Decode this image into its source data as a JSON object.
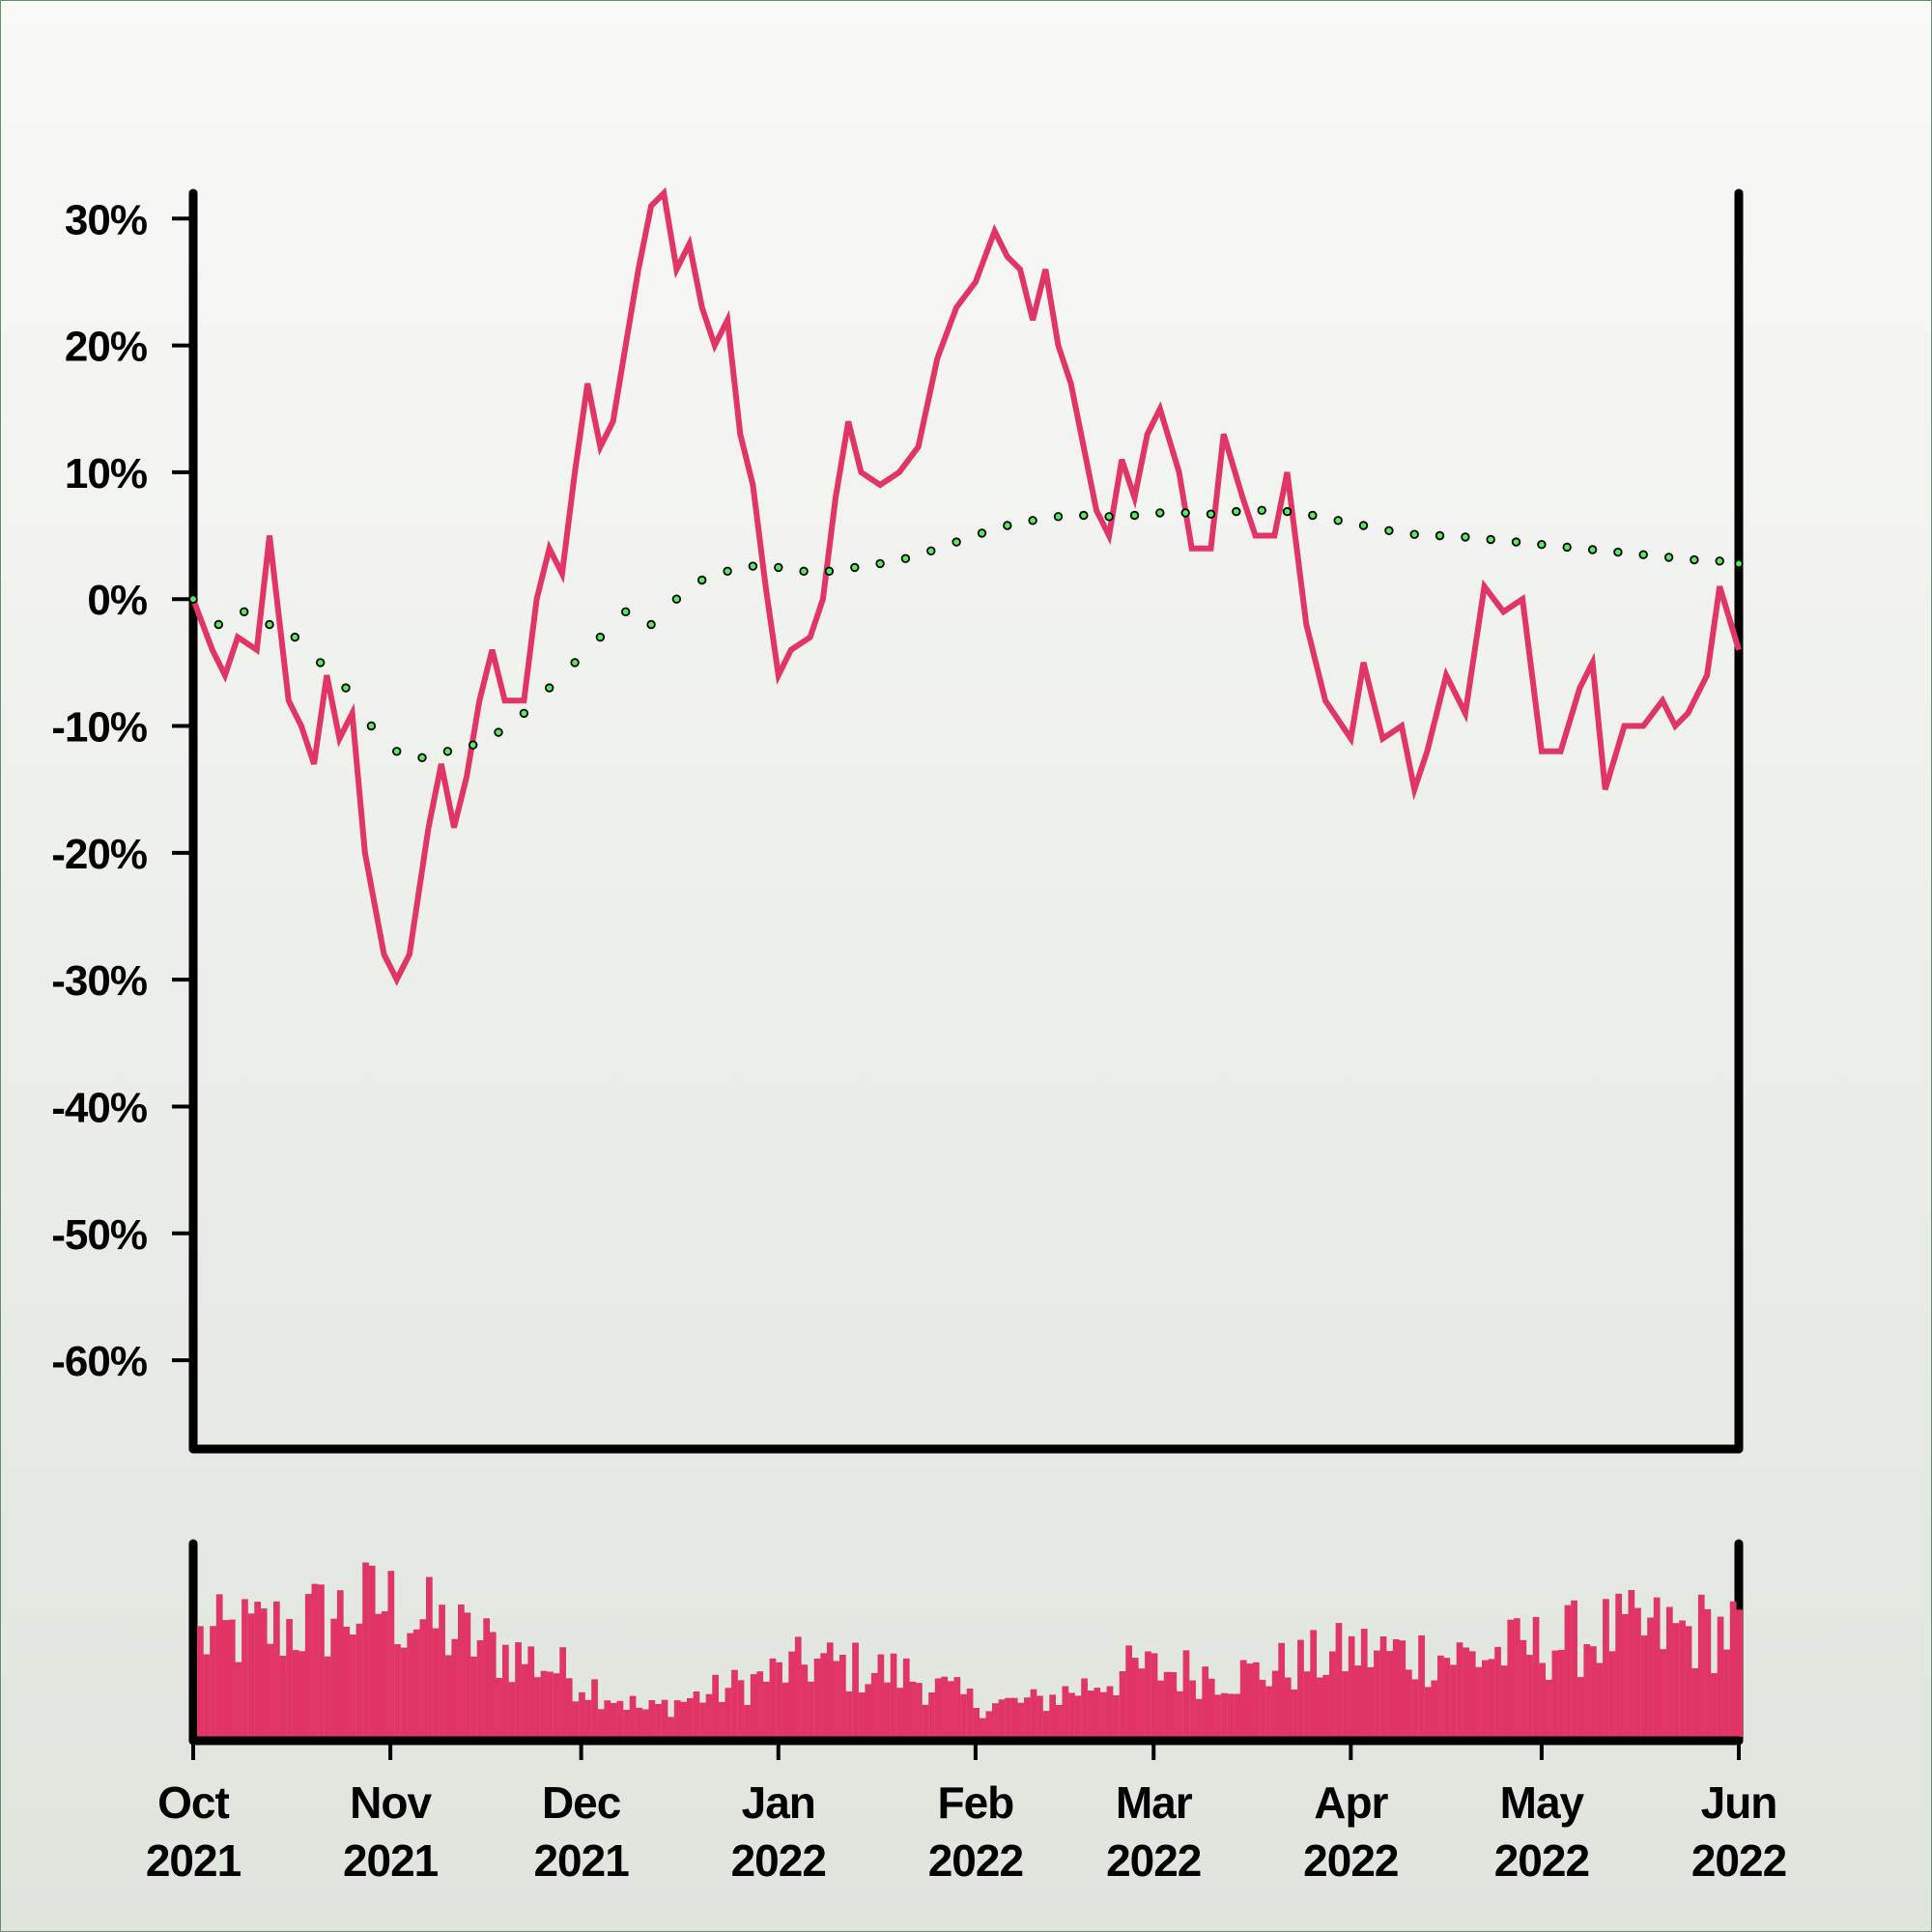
{
  "colors": {
    "price_line": "#e03565",
    "moving_average_fill": "#55ee55",
    "moving_average_stroke": "#000000",
    "volume_bars": "#e03565",
    "axis": "#000000"
  },
  "chart_data": [
    {
      "type": "line",
      "role": "price-chart",
      "title": "",
      "xlabel": "",
      "ylabel": "",
      "x_range": [
        "2021-10-01",
        "2022-06-01"
      ],
      "ylim": [
        -67,
        32
      ],
      "y_ticks": [
        {
          "value": 30,
          "label": "30%"
        },
        {
          "value": 20,
          "label": "20%"
        },
        {
          "value": 10,
          "label": "10%"
        },
        {
          "value": 0,
          "label": "0%"
        },
        {
          "value": -10,
          "label": "-10%"
        },
        {
          "value": -20,
          "label": "-20%"
        },
        {
          "value": -30,
          "label": "-30%"
        },
        {
          "value": -40,
          "label": "-40%"
        },
        {
          "value": -50,
          "label": "-50%"
        },
        {
          "value": -60,
          "label": "-60%"
        }
      ],
      "grid": false,
      "legend": "none",
      "series": [
        {
          "style": "solid-line",
          "points": [
            [
              "2021-10-01",
              0
            ],
            [
              "2021-10-04",
              -4
            ],
            [
              "2021-10-06",
              -6
            ],
            [
              "2021-10-08",
              -3
            ],
            [
              "2021-10-11",
              -4
            ],
            [
              "2021-10-13",
              5
            ],
            [
              "2021-10-16",
              -8
            ],
            [
              "2021-10-18",
              -10
            ],
            [
              "2021-10-20",
              -13
            ],
            [
              "2021-10-22",
              -6
            ],
            [
              "2021-10-24",
              -11
            ],
            [
              "2021-10-26",
              -9
            ],
            [
              "2021-10-28",
              -20
            ],
            [
              "2021-10-31",
              -28
            ],
            [
              "2021-11-02",
              -30
            ],
            [
              "2021-11-04",
              -28
            ],
            [
              "2021-11-07",
              -18
            ],
            [
              "2021-11-09",
              -13
            ],
            [
              "2021-11-11",
              -18
            ],
            [
              "2021-11-13",
              -14
            ],
            [
              "2021-11-15",
              -8
            ],
            [
              "2021-11-17",
              -4
            ],
            [
              "2021-11-19",
              -8
            ],
            [
              "2021-11-22",
              -8
            ],
            [
              "2021-11-24",
              0
            ],
            [
              "2021-11-26",
              4
            ],
            [
              "2021-11-28",
              2
            ],
            [
              "2021-11-30",
              10
            ],
            [
              "2021-12-02",
              17
            ],
            [
              "2021-12-04",
              12
            ],
            [
              "2021-12-06",
              14
            ],
            [
              "2021-12-08",
              20
            ],
            [
              "2021-12-10",
              26
            ],
            [
              "2021-12-12",
              31
            ],
            [
              "2021-12-14",
              32
            ],
            [
              "2021-12-16",
              26
            ],
            [
              "2021-12-18",
              28
            ],
            [
              "2021-12-20",
              23
            ],
            [
              "2021-12-22",
              20
            ],
            [
              "2021-12-24",
              22
            ],
            [
              "2021-12-26",
              13
            ],
            [
              "2021-12-28",
              9
            ],
            [
              "2021-12-30",
              1
            ],
            [
              "2022-01-01",
              -6
            ],
            [
              "2022-01-03",
              -4
            ],
            [
              "2022-01-06",
              -3
            ],
            [
              "2022-01-08",
              0
            ],
            [
              "2022-01-10",
              8
            ],
            [
              "2022-01-12",
              14
            ],
            [
              "2022-01-14",
              10
            ],
            [
              "2022-01-17",
              9
            ],
            [
              "2022-01-20",
              10
            ],
            [
              "2022-01-23",
              12
            ],
            [
              "2022-01-26",
              19
            ],
            [
              "2022-01-29",
              23
            ],
            [
              "2022-02-01",
              25
            ],
            [
              "2022-02-04",
              29
            ],
            [
              "2022-02-06",
              27
            ],
            [
              "2022-02-08",
              26
            ],
            [
              "2022-02-10",
              22
            ],
            [
              "2022-02-12",
              26
            ],
            [
              "2022-02-14",
              20
            ],
            [
              "2022-02-16",
              17
            ],
            [
              "2022-02-18",
              12
            ],
            [
              "2022-02-20",
              7
            ],
            [
              "2022-02-22",
              5
            ],
            [
              "2022-02-24",
              11
            ],
            [
              "2022-02-26",
              8
            ],
            [
              "2022-02-28",
              13
            ],
            [
              "2022-03-02",
              15
            ],
            [
              "2022-03-05",
              10
            ],
            [
              "2022-03-07",
              4
            ],
            [
              "2022-03-10",
              4
            ],
            [
              "2022-03-12",
              13
            ],
            [
              "2022-03-15",
              8
            ],
            [
              "2022-03-17",
              5
            ],
            [
              "2022-03-20",
              5
            ],
            [
              "2022-03-22",
              10
            ],
            [
              "2022-03-25",
              -2
            ],
            [
              "2022-03-28",
              -8
            ],
            [
              "2022-04-01",
              -11
            ],
            [
              "2022-04-03",
              -5
            ],
            [
              "2022-04-06",
              -11
            ],
            [
              "2022-04-09",
              -10
            ],
            [
              "2022-04-11",
              -15
            ],
            [
              "2022-04-13",
              -12
            ],
            [
              "2022-04-16",
              -6
            ],
            [
              "2022-04-19",
              -9
            ],
            [
              "2022-04-22",
              1
            ],
            [
              "2022-04-25",
              -1
            ],
            [
              "2022-04-28",
              0
            ],
            [
              "2022-05-01",
              -12
            ],
            [
              "2022-05-04",
              -12
            ],
            [
              "2022-05-07",
              -7
            ],
            [
              "2022-05-09",
              -5
            ],
            [
              "2022-05-11",
              -15
            ],
            [
              "2022-05-14",
              -10
            ],
            [
              "2022-05-17",
              -10
            ],
            [
              "2022-05-20",
              -8
            ],
            [
              "2022-05-22",
              -10
            ],
            [
              "2022-05-24",
              -9
            ],
            [
              "2022-05-27",
              -6
            ],
            [
              "2022-05-29",
              1
            ],
            [
              "2022-06-01",
              -4
            ]
          ]
        },
        {
          "style": "dotted-markers",
          "points": [
            [
              "2021-10-01",
              0
            ],
            [
              "2021-10-05",
              -2
            ],
            [
              "2021-10-09",
              -1
            ],
            [
              "2021-10-13",
              -2
            ],
            [
              "2021-10-17",
              -3
            ],
            [
              "2021-10-21",
              -5
            ],
            [
              "2021-10-25",
              -7
            ],
            [
              "2021-10-29",
              -10
            ],
            [
              "2021-11-02",
              -12
            ],
            [
              "2021-11-06",
              -12.5
            ],
            [
              "2021-11-10",
              -12
            ],
            [
              "2021-11-14",
              -11.5
            ],
            [
              "2021-11-18",
              -10.5
            ],
            [
              "2021-11-22",
              -9
            ],
            [
              "2021-11-26",
              -7
            ],
            [
              "2021-11-30",
              -5
            ],
            [
              "2021-12-04",
              -3
            ],
            [
              "2021-12-08",
              -1
            ],
            [
              "2021-12-12",
              -2
            ],
            [
              "2021-12-16",
              0
            ],
            [
              "2021-12-20",
              1.5
            ],
            [
              "2021-12-24",
              2.2
            ],
            [
              "2021-12-28",
              2.6
            ],
            [
              "2022-01-01",
              2.5
            ],
            [
              "2022-01-05",
              2.2
            ],
            [
              "2022-01-09",
              2.2
            ],
            [
              "2022-01-13",
              2.5
            ],
            [
              "2022-01-17",
              2.8
            ],
            [
              "2022-01-21",
              3.2
            ],
            [
              "2022-01-25",
              3.8
            ],
            [
              "2022-01-29",
              4.5
            ],
            [
              "2022-02-02",
              5.2
            ],
            [
              "2022-02-06",
              5.8
            ],
            [
              "2022-02-10",
              6.2
            ],
            [
              "2022-02-14",
              6.5
            ],
            [
              "2022-02-18",
              6.6
            ],
            [
              "2022-02-22",
              6.5
            ],
            [
              "2022-02-26",
              6.6
            ],
            [
              "2022-03-02",
              6.8
            ],
            [
              "2022-03-06",
              6.8
            ],
            [
              "2022-03-10",
              6.7
            ],
            [
              "2022-03-14",
              6.9
            ],
            [
              "2022-03-18",
              7
            ],
            [
              "2022-03-22",
              6.9
            ],
            [
              "2022-03-26",
              6.6
            ],
            [
              "2022-03-30",
              6.2
            ],
            [
              "2022-04-03",
              5.8
            ],
            [
              "2022-04-07",
              5.4
            ],
            [
              "2022-04-11",
              5.1
            ],
            [
              "2022-04-15",
              5
            ],
            [
              "2022-04-19",
              4.9
            ],
            [
              "2022-04-23",
              4.7
            ],
            [
              "2022-04-27",
              4.5
            ],
            [
              "2022-05-01",
              4.3
            ],
            [
              "2022-05-05",
              4.1
            ],
            [
              "2022-05-09",
              3.9
            ],
            [
              "2022-05-13",
              3.7
            ],
            [
              "2022-05-17",
              3.5
            ],
            [
              "2022-05-21",
              3.3
            ],
            [
              "2022-05-25",
              3.1
            ],
            [
              "2022-05-29",
              3
            ],
            [
              "2022-06-01",
              2.8
            ]
          ]
        }
      ]
    },
    {
      "type": "bar",
      "role": "volume-chart",
      "title": "",
      "x_ticks": [
        {
          "date": "2021-10-01",
          "label": [
            "Oct",
            "2021"
          ]
        },
        {
          "date": "2021-11-01",
          "label": [
            "Nov",
            "2021"
          ]
        },
        {
          "date": "2021-12-01",
          "label": [
            "Dec",
            "2021"
          ]
        },
        {
          "date": "2022-01-01",
          "label": [
            "Jan",
            "2022"
          ]
        },
        {
          "date": "2022-02-01",
          "label": [
            "Feb",
            "2022"
          ]
        },
        {
          "date": "2022-03-01",
          "label": [
            "Mar",
            "2022"
          ]
        },
        {
          "date": "2022-04-01",
          "label": [
            "Apr",
            "2022"
          ]
        },
        {
          "date": "2022-05-01",
          "label": [
            "May",
            "2022"
          ]
        },
        {
          "date": "2022-06-01",
          "label": [
            "Jun",
            "2022"
          ]
        }
      ],
      "volume_profile": [
        [
          "2021-10-01",
          0.55
        ],
        [
          "2021-10-15",
          0.62
        ],
        [
          "2021-10-30",
          0.75
        ],
        [
          "2021-11-12",
          0.55
        ],
        [
          "2021-11-25",
          0.4
        ],
        [
          "2021-12-10",
          0.15
        ],
        [
          "2021-12-24",
          0.28
        ],
        [
          "2022-01-05",
          0.42
        ],
        [
          "2022-01-20",
          0.35
        ],
        [
          "2022-02-01",
          0.18
        ],
        [
          "2022-02-10",
          0.2
        ],
        [
          "2022-02-25",
          0.38
        ],
        [
          "2022-03-15",
          0.35
        ],
        [
          "2022-04-01",
          0.48
        ],
        [
          "2022-04-20",
          0.45
        ],
        [
          "2022-05-10",
          0.58
        ],
        [
          "2022-06-01",
          0.6
        ]
      ]
    }
  ]
}
